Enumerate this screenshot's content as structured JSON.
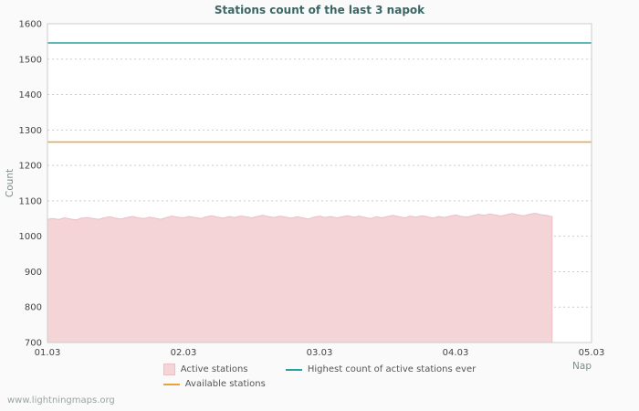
{
  "watermark": "www.lightningmaps.org",
  "chart_data": {
    "type": "area",
    "title": "Stations count of the last 3 napok",
    "xlabel": "Nap",
    "ylabel": "Count",
    "ylim": [
      700,
      1600
    ],
    "ytick_step": 100,
    "x_range": [
      0,
      4
    ],
    "x_ticks": [
      "01.03",
      "02.03",
      "03.03",
      "04.03",
      "05.03"
    ],
    "grid": "horizontal-dotted",
    "grid_color": "#cccccc",
    "legend_position": "bottom",
    "series": [
      {
        "name": "Active stations",
        "type": "area",
        "color": "#f5d4d8",
        "edge": "#eabfc6",
        "x_end": 3.71,
        "values": [
          1048,
          1050,
          1047,
          1052,
          1049,
          1046,
          1051,
          1053,
          1050,
          1048,
          1052,
          1055,
          1051,
          1049,
          1053,
          1056,
          1052,
          1050,
          1054,
          1051,
          1048,
          1053,
          1057,
          1054,
          1052,
          1056,
          1053,
          1050,
          1055,
          1058,
          1054,
          1051,
          1056,
          1053,
          1057,
          1055,
          1052,
          1056,
          1059,
          1055,
          1053,
          1057,
          1054,
          1051,
          1055,
          1052,
          1049,
          1054,
          1057,
          1053,
          1056,
          1052,
          1055,
          1058,
          1054,
          1057,
          1053,
          1050,
          1055,
          1052,
          1056,
          1059,
          1055,
          1052,
          1057,
          1054,
          1058,
          1055,
          1051,
          1056,
          1053,
          1057,
          1060,
          1056,
          1054,
          1058,
          1062,
          1059,
          1063,
          1060,
          1057,
          1061,
          1064,
          1060,
          1058,
          1062,
          1065,
          1061,
          1059,
          1055
        ]
      },
      {
        "name": "Available stations",
        "type": "hline",
        "color": "#e8a33c",
        "value": 1266
      },
      {
        "name": "Highest count of active stations ever",
        "type": "hline",
        "color": "#2aa1a1",
        "value": 1546
      }
    ]
  }
}
